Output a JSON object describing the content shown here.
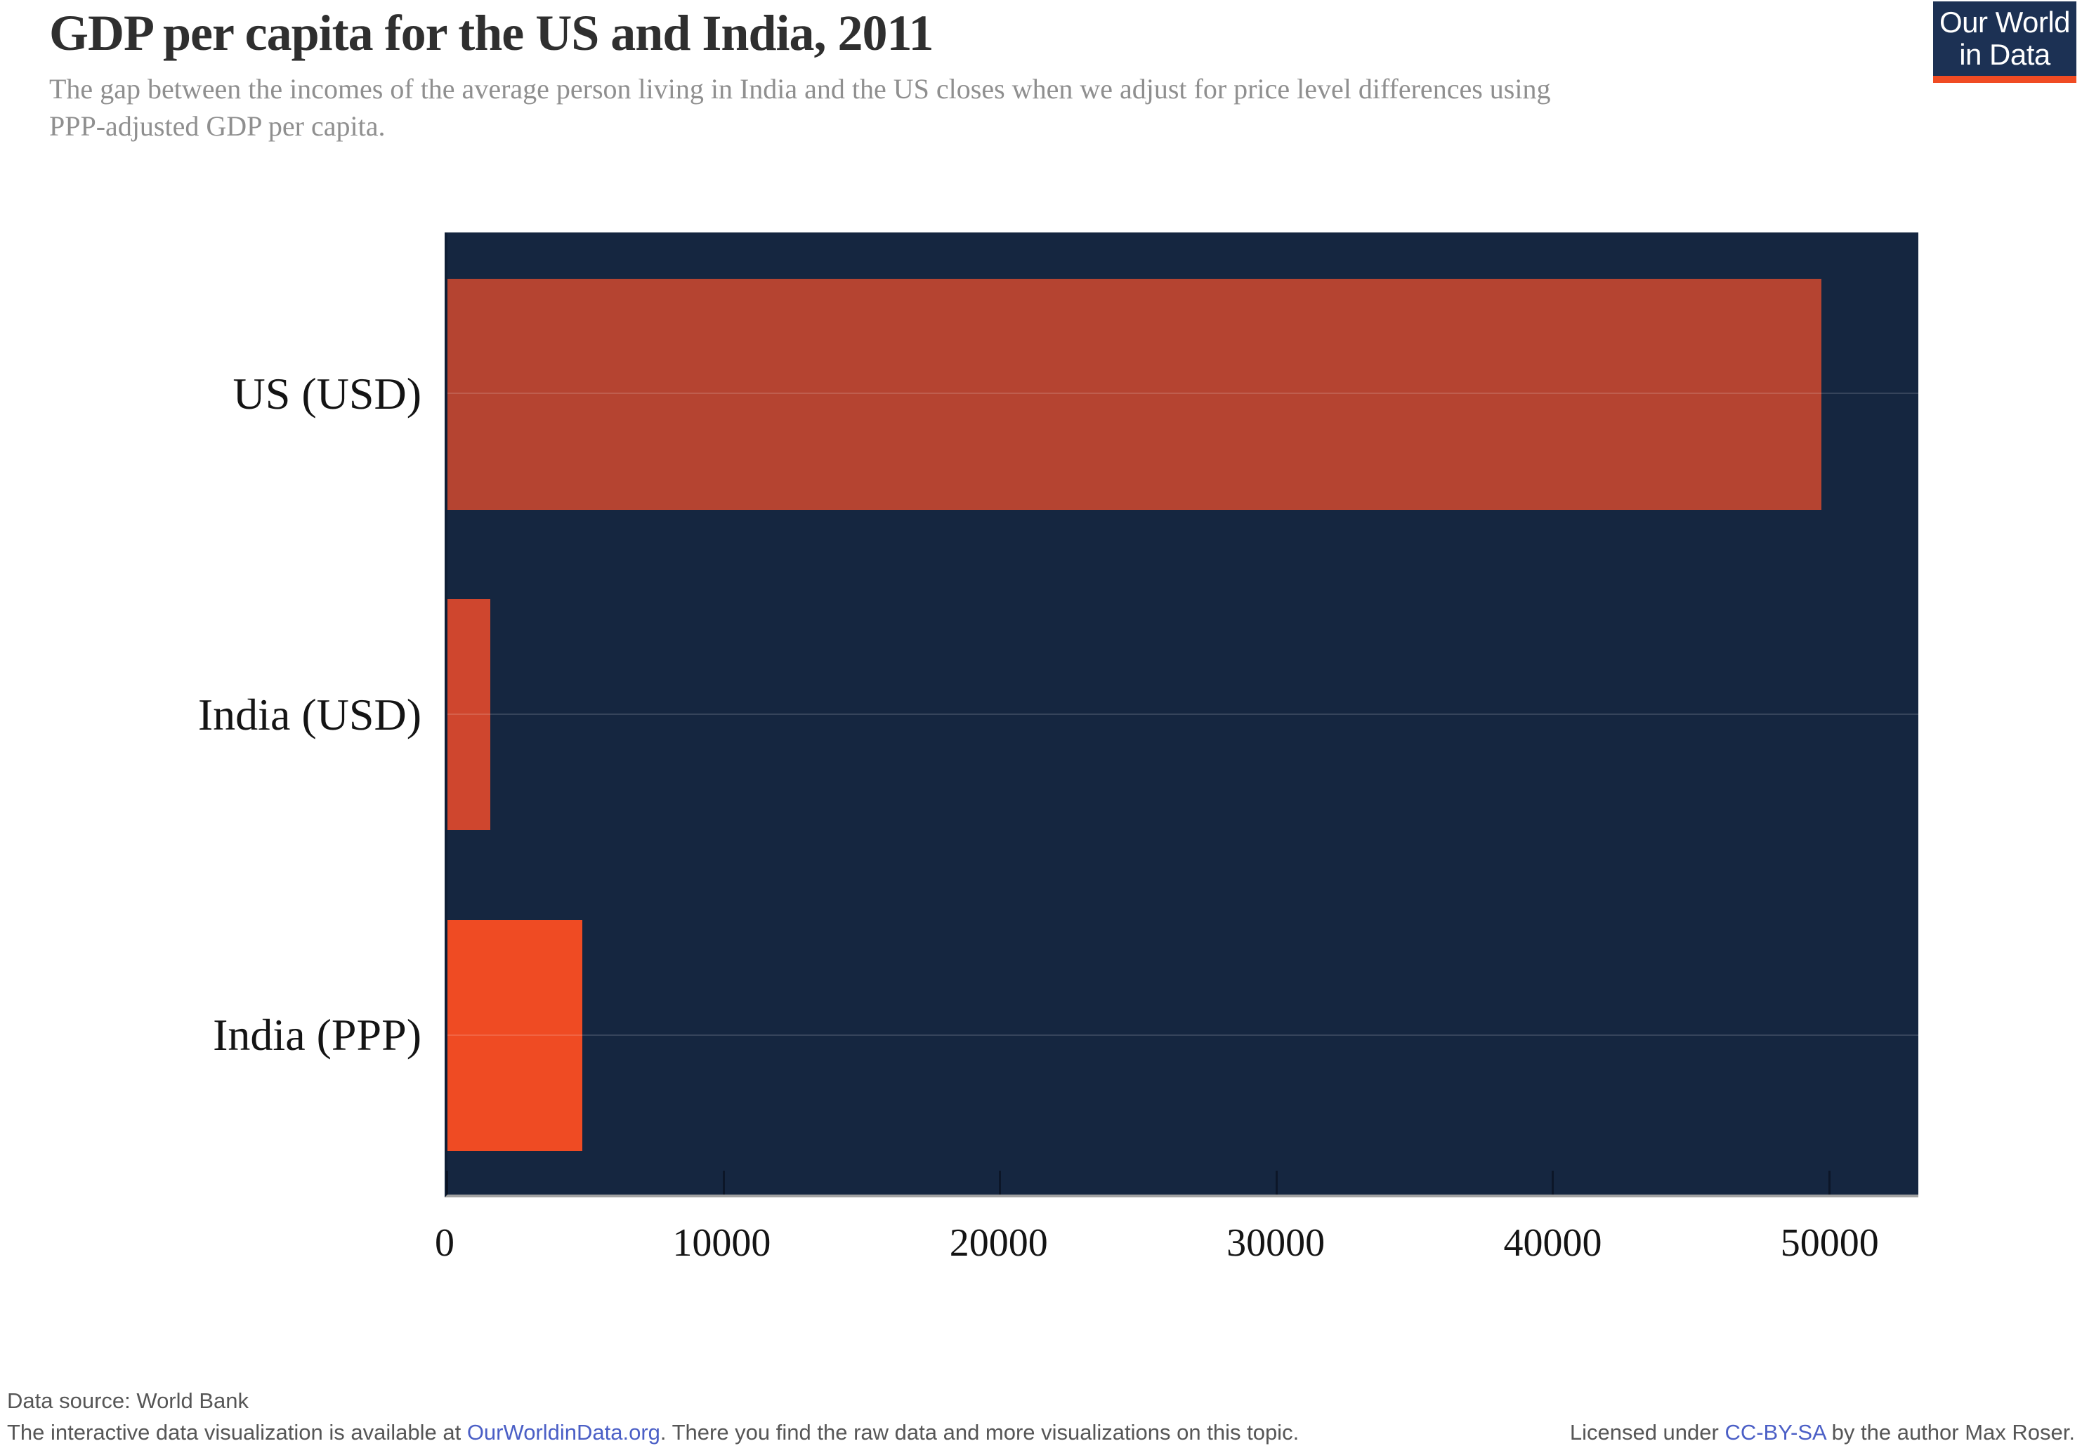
{
  "header": {
    "title": "GDP per capita for the US and India, 2011",
    "subtitle_lines": [
      "The gap between the incomes of the average person living in India and the US closes when we adjust for price level differences using",
      "PPP-adjusted GDP per capita."
    ]
  },
  "logo": {
    "line1": "Our World",
    "line2": "in Data",
    "bg_color": "#1c3154",
    "bar_color": "#f04b23"
  },
  "chart_data": {
    "type": "bar",
    "orientation": "horizontal",
    "title": "GDP per capita for the US and India, 2011",
    "categories": [
      "US (USD)",
      "India (USD)",
      "India (PPP)"
    ],
    "values": [
      49700,
      1550,
      4870
    ],
    "unit": "GDP per capita",
    "colors": [
      "#b54431",
      "#cf462e",
      "#ef4b23"
    ],
    "x_ticks": [
      0,
      10000,
      20000,
      30000,
      40000,
      50000
    ],
    "xlim": [
      0,
      53200
    ],
    "plot_bg": "#152640",
    "grid": "off",
    "legend": "none"
  },
  "footer": {
    "source_label": "Data source: World Bank",
    "info_prefix": "The interactive data visualization is available at ",
    "info_link": "OurWorldinData.org",
    "info_suffix": ". There you find the raw data and more visualizations on this topic.",
    "license_prefix": "Licensed under ",
    "license_link": "CC-BY-SA",
    "license_suffix": " by the author Max Roser.",
    "link_color": "#4b5fc6"
  }
}
